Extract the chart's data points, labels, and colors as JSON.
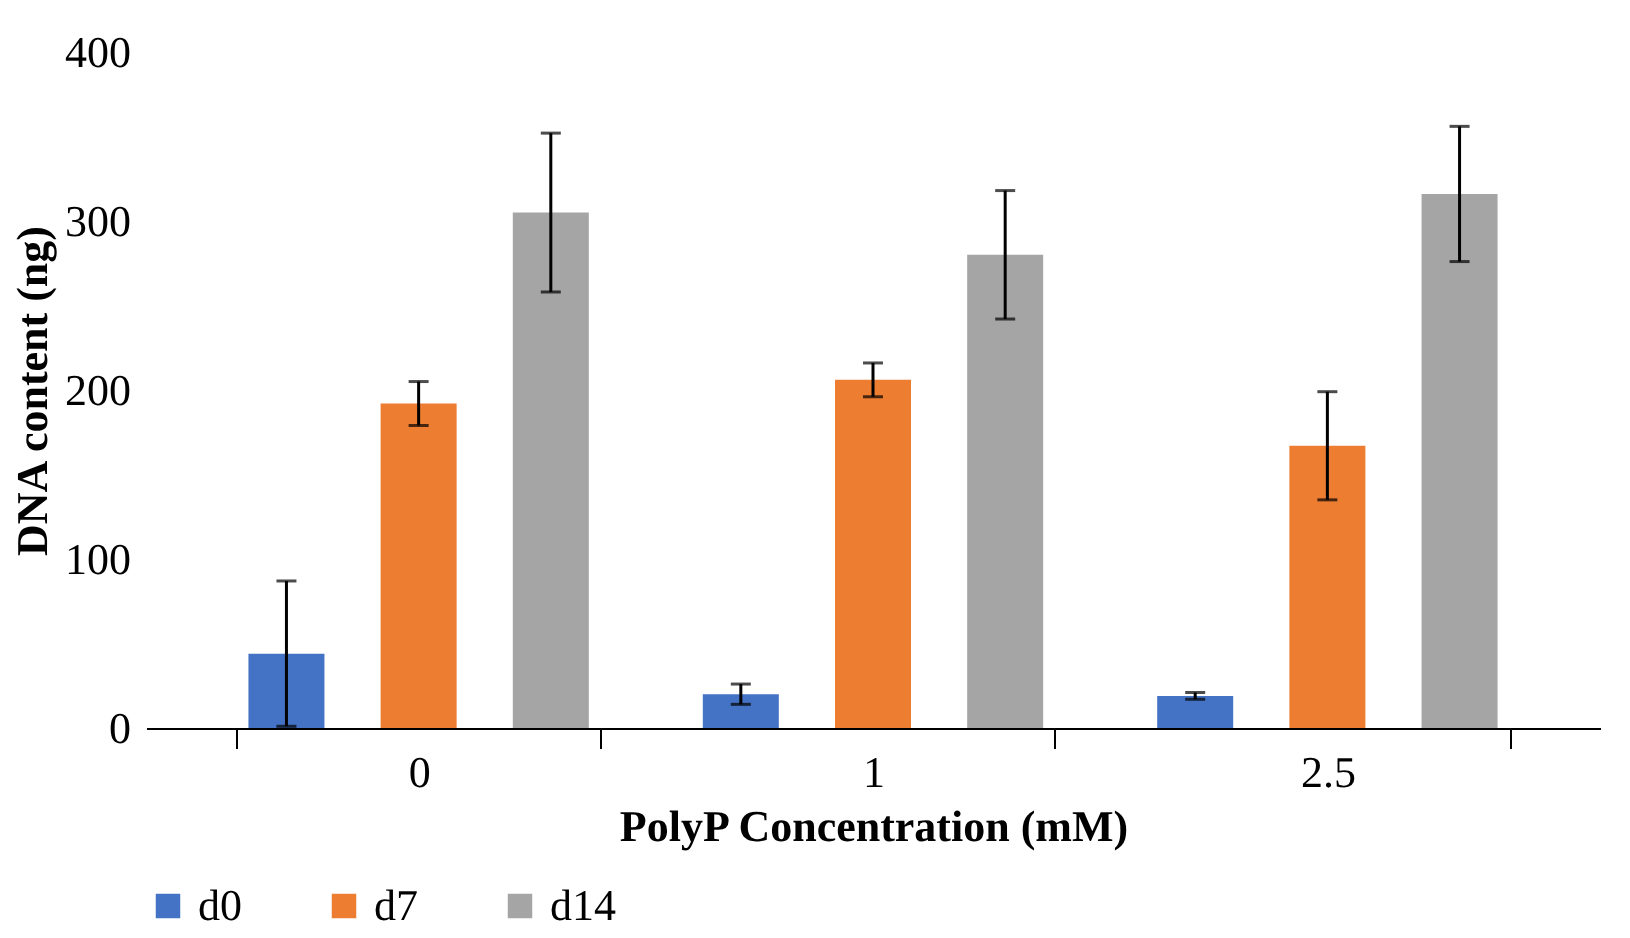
{
  "chart_data": {
    "type": "bar",
    "xlabel": "PolyP Concentration (mM)",
    "ylabel": "DNA content (ng)",
    "categories": [
      "0",
      "1",
      "2.5"
    ],
    "series": [
      {
        "name": "d0",
        "color": "#4472c4",
        "values": [
          44,
          20,
          19
        ],
        "errors": [
          43,
          6,
          2
        ]
      },
      {
        "name": "d7",
        "color": "#ed7d31",
        "values": [
          192,
          206,
          167
        ],
        "errors": [
          13,
          10,
          32
        ]
      },
      {
        "name": "d14",
        "color": "#a5a5a5",
        "values": [
          305,
          280,
          316
        ],
        "errors": [
          47,
          38,
          40
        ]
      }
    ],
    "ylim": [
      0,
      400
    ],
    "yticks": [
      0,
      100,
      200,
      300,
      400
    ],
    "grid": false,
    "legend": "bottom"
  }
}
